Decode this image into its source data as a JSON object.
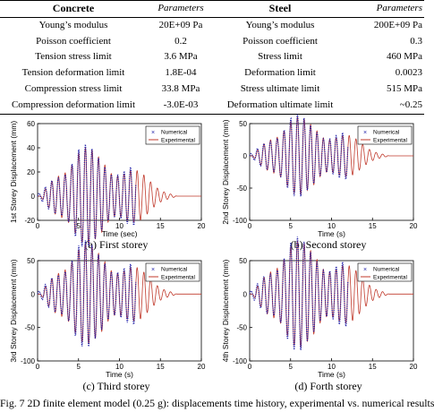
{
  "table": {
    "headers": {
      "concrete": "Concrete",
      "parameters_left": "Parameters",
      "steel": "Steel",
      "parameters_right": "Parameters"
    },
    "rows": [
      {
        "c_name": "Young’s modulus",
        "c_value": "20E+09 Pa",
        "s_name": "Young’s modulus",
        "s_value": "200E+09 Pa"
      },
      {
        "c_name": "Poisson coefficient",
        "c_value": "0.2",
        "s_name": "Poisson coefficient",
        "s_value": "0.3"
      },
      {
        "c_name": "Tension stress limit",
        "c_value": "3.6 MPa",
        "s_name": "Stress limit",
        "s_value": "460 MPa"
      },
      {
        "c_name": "Tension deformation limit",
        "c_value": "1.8E-04",
        "s_name": "Deformation limit",
        "s_value": "0.0023"
      },
      {
        "c_name": "Compression stress limit",
        "c_value": "33.8 MPa",
        "s_name": "Stress ultimate limit",
        "s_value": "515 MPa"
      },
      {
        "c_name": "Compression deformation limit",
        "c_value": "-3.0E-03",
        "s_name": "Deformation ultimate limit",
        "s_value": "~0.25"
      }
    ]
  },
  "colors": {
    "numerical": "#1a1aa6",
    "experimental": "#c0392b"
  },
  "chart_data": [
    {
      "type": "line",
      "caption": "(a) First storey",
      "xlabel": "Time (sec)",
      "ylabel": "1st Storey Displacement (mm)",
      "xlim": [
        0,
        20
      ],
      "ylim": [
        -20,
        60
      ],
      "xticks": [
        "0",
        "5",
        "10",
        "15",
        "20"
      ],
      "yticks": [
        "-20",
        "0",
        "20",
        "40",
        "60"
      ],
      "legend": [
        "Numerical",
        "Experimental"
      ],
      "legend_position": "top-right",
      "peak_abs": 40,
      "record_end": 17,
      "numerical_end": 12
    },
    {
      "type": "line",
      "caption": "(b) Second storey",
      "xlabel": "Time (s)",
      "ylabel": "2nd Storey Displacement (mm)",
      "xlim": [
        0,
        20
      ],
      "ylim": [
        -100,
        50
      ],
      "xticks": [
        "0",
        "5",
        "10",
        "15",
        "20"
      ],
      "yticks": [
        "-100",
        "-50",
        "0",
        "50"
      ],
      "legend": [
        "Numerical",
        "Experimental"
      ],
      "legend_position": "top-right",
      "peak_abs": 60,
      "record_end": 17,
      "numerical_end": 12
    },
    {
      "type": "line",
      "caption": "(c) Third storey",
      "xlabel": "Time (s)",
      "ylabel": "3rd Storey Displacement (mm)",
      "xlim": [
        0,
        20
      ],
      "ylim": [
        -100,
        50
      ],
      "xticks": [
        "0",
        "5",
        "10",
        "15",
        "20"
      ],
      "yticks": [
        "-100",
        "-50",
        "0",
        "50"
      ],
      "legend": [
        "Numerical",
        "Experimental"
      ],
      "legend_position": "top-right",
      "peak_abs": 75,
      "record_end": 17,
      "numerical_end": 12
    },
    {
      "type": "line",
      "caption": "(d) Forth storey",
      "xlabel": "Time (s)",
      "ylabel": "4th Storey Displacement (mm)",
      "xlim": [
        0,
        20
      ],
      "ylim": [
        -100,
        50
      ],
      "xticks": [
        "0",
        "5",
        "10",
        "15",
        "20"
      ],
      "yticks": [
        "-100",
        "-50",
        "0",
        "50"
      ],
      "legend": [
        "Numerical",
        "Experimental"
      ],
      "legend_position": "top-right",
      "peak_abs": 80,
      "record_end": 17,
      "numerical_end": 12
    }
  ],
  "figure_caption": "Fig. 7 2D finite element model (0.25 g): displacements time history, experimental vs. numerical results"
}
